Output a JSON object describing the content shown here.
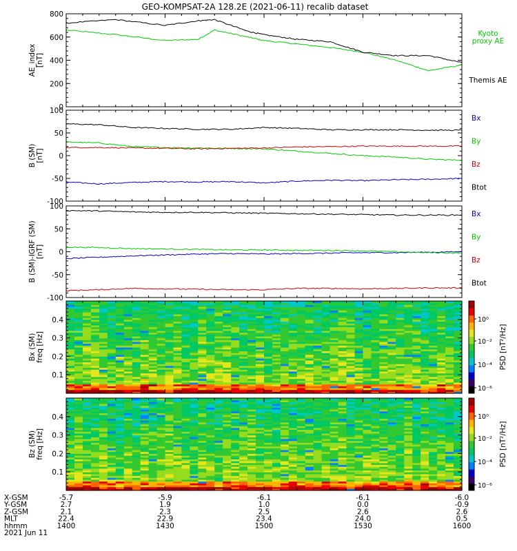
{
  "title": "GEO-KOMPSAT-2A 128.2E (2021-06-11) recalib dataset",
  "x_tick_values": [
    "1400",
    "1430",
    "1500",
    "1530",
    "1600"
  ],
  "ephemeris": {
    "rows": [
      {
        "label": "X-GSM",
        "values": [
          "-5.7",
          "-5.9",
          "-6.1",
          "-6.1",
          "-6.0"
        ]
      },
      {
        "label": "Y-GSM",
        "values": [
          "2.7",
          "1.9",
          "1.0",
          "0.0",
          "-0.9"
        ]
      },
      {
        "label": "Z-GSM",
        "values": [
          "2.1",
          "2.3",
          "2.5",
          "2.6",
          "2.6"
        ]
      },
      {
        "label": "MLT",
        "values": [
          "22.4",
          "22.9",
          "23.4",
          "24.0",
          "0.5"
        ]
      },
      {
        "label": "hhmm",
        "values": [
          "1400",
          "1430",
          "1500",
          "1530",
          "1600"
        ]
      }
    ],
    "date": "2021 Jun 11"
  },
  "colorbar": {
    "label": "PSD [nT²/Hz]",
    "ticks": [
      "10⁰",
      "10⁻²",
      "10⁻⁴",
      "10⁻⁶"
    ],
    "colors": [
      "#000000",
      "#3a006a",
      "#0000c8",
      "#0080ff",
      "#00c8c8",
      "#00c864",
      "#32c832",
      "#96dc1e",
      "#e6e61e",
      "#ffb400",
      "#ff6400",
      "#e60000",
      "#a00000"
    ]
  },
  "chart_data": [
    {
      "type": "line",
      "ylabel_line1": "AE_index",
      "ylabel_line2": "[nT]",
      "ylim": [
        0,
        800
      ],
      "yticks": [
        0,
        200,
        400,
        600,
        800
      ],
      "x": [
        1400,
        1415,
        1430,
        1440,
        1445,
        1455,
        1500,
        1510,
        1520,
        1530,
        1540,
        1550,
        1600
      ],
      "series": [
        {
          "name": "Kyoto proxy AE",
          "legend_lines": [
            "Kyoto",
            "proxy AE"
          ],
          "color": "#00cc00",
          "values": [
            660,
            620,
            570,
            580,
            660,
            600,
            570,
            540,
            510,
            470,
            400,
            310,
            360
          ]
        },
        {
          "name": "Themis AE",
          "legend_lines": [
            "Themis AE"
          ],
          "color": "#000000",
          "values": [
            720,
            750,
            700,
            740,
            750,
            650,
            620,
            580,
            560,
            470,
            440,
            440,
            380
          ]
        }
      ]
    },
    {
      "type": "line",
      "ylabel_line1": "B (SM)",
      "ylabel_line2": "[nT]",
      "ylim": [
        -100,
        100
      ],
      "yticks": [
        -100,
        -50,
        0,
        50,
        100
      ],
      "x": [
        1400,
        1410,
        1420,
        1430,
        1440,
        1450,
        1500,
        1510,
        1520,
        1530,
        1540,
        1550,
        1600
      ],
      "series": [
        {
          "name": "Bx",
          "color": "#0000cc",
          "values": [
            -58,
            -62,
            -59,
            -57,
            -58,
            -57,
            -60,
            -56,
            -54,
            -55,
            -53,
            -52,
            -50
          ]
        },
        {
          "name": "By",
          "color": "#00cc00",
          "values": [
            30,
            28,
            20,
            18,
            17,
            16,
            15,
            10,
            5,
            0,
            -3,
            -8,
            -10
          ]
        },
        {
          "name": "Bz",
          "color": "#cc0000",
          "values": [
            18,
            18,
            17,
            16,
            15,
            16,
            17,
            19,
            20,
            21,
            21,
            21,
            21
          ]
        },
        {
          "name": "Btot",
          "color": "#000000",
          "values": [
            70,
            68,
            62,
            60,
            58,
            58,
            62,
            60,
            57,
            57,
            57,
            56,
            56
          ]
        }
      ]
    },
    {
      "type": "line",
      "ylabel_line1": "B (SM)-IGRF (SM)",
      "ylabel_line2": "[nT]",
      "ylim": [
        -100,
        100
      ],
      "yticks": [
        -100,
        -50,
        0,
        50,
        100
      ],
      "x": [
        1400,
        1410,
        1420,
        1430,
        1440,
        1450,
        1500,
        1510,
        1520,
        1530,
        1540,
        1550,
        1600
      ],
      "series": [
        {
          "name": "Bx",
          "color": "#0000cc",
          "values": [
            -15,
            -12,
            -9,
            -7,
            -5,
            -4,
            -5,
            -4,
            -3,
            -2,
            -2,
            -1,
            0
          ]
        },
        {
          "name": "By",
          "color": "#00cc00",
          "values": [
            10,
            9,
            7,
            6,
            5,
            4,
            4,
            3,
            3,
            2,
            0,
            -2,
            -3
          ]
        },
        {
          "name": "Bz",
          "color": "#cc0000",
          "values": [
            -85,
            -83,
            -80,
            -81,
            -82,
            -83,
            -83,
            -80,
            -80,
            -81,
            -80,
            -79,
            -79
          ]
        },
        {
          "name": "Btot",
          "color": "#000000",
          "values": [
            90,
            89,
            87,
            86,
            86,
            85,
            84,
            83,
            82,
            81,
            80,
            80,
            80
          ]
        }
      ]
    },
    {
      "type": "heatmap",
      "ylabel_line1": "Bx (SM)",
      "ylabel_line2": "freq [Hz]",
      "ylim": [
        0,
        0.5
      ],
      "yticks": [
        0.1,
        0.2,
        0.3,
        0.4
      ]
    },
    {
      "type": "heatmap",
      "ylabel_line1": "Bz (SM)",
      "ylabel_line2": "freq [Hz]",
      "ylim": [
        0,
        0.5
      ],
      "yticks": [
        0.1,
        0.2,
        0.3,
        0.4
      ]
    }
  ]
}
